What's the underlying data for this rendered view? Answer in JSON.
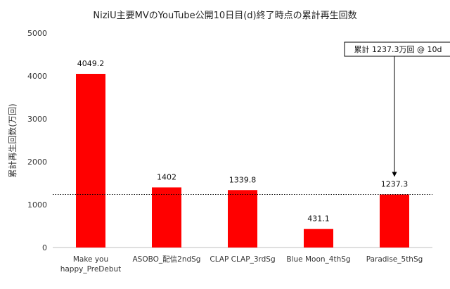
{
  "chart_data": {
    "type": "bar",
    "title": "NiziU主要MVのYouTube公開10日目(d)終了時点の累計再生回数",
    "ylabel": "累計再生回数(万回)",
    "xlabel": "",
    "ylim": [
      0,
      5000
    ],
    "yticks": [
      0,
      1000,
      2000,
      3000,
      4000,
      5000
    ],
    "categories": [
      [
        "Make you",
        "happy_PreDebut"
      ],
      [
        "ASOBO_配信2ndSg"
      ],
      [
        "CLAP CLAP_3rdSg"
      ],
      [
        "Blue Moon_4thSg"
      ],
      [
        "Paradise_5thSg"
      ]
    ],
    "values": [
      4049.2,
      1402,
      1339.8,
      431.1,
      1237.3
    ],
    "value_labels": [
      "4049.2",
      "1402",
      "1339.8",
      "431.1",
      "1237.3"
    ],
    "bar_color": "#ff0000",
    "reference_line": {
      "value": 1237.3,
      "style": "dotted",
      "color": "#000000"
    },
    "annotation": {
      "text": "累計 1237.3万回 @ 10d",
      "target_category_index": 4
    },
    "grid": false,
    "legend": "none"
  }
}
